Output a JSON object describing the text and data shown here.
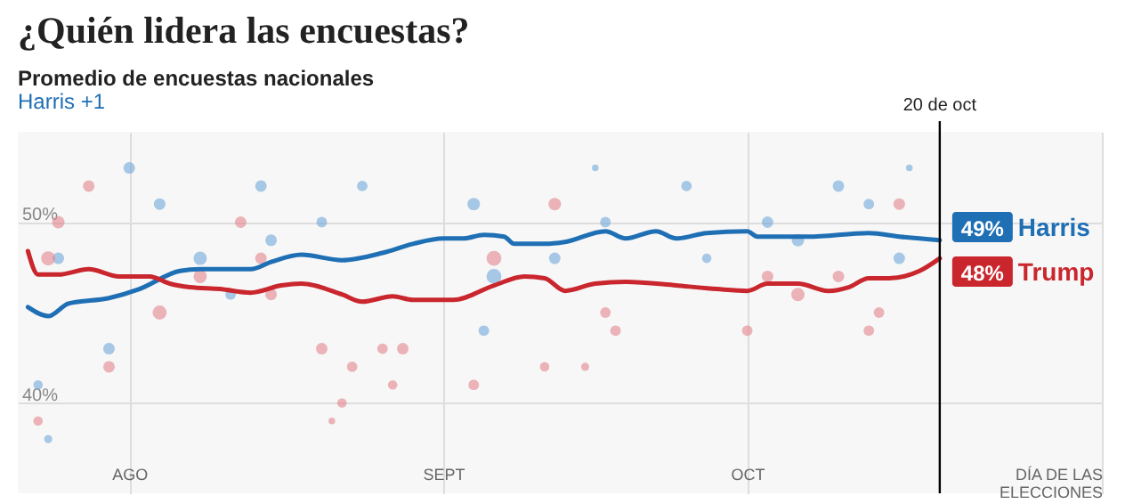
{
  "chart_data": {
    "type": "line",
    "title": "¿Quién lidera las encuestas?",
    "subtitle": "Promedio de encuestas nacionales",
    "annotations": [
      "Harris +1"
    ],
    "xlim": [
      "--07-21",
      "--11-05"
    ],
    "xticks": [
      {
        "value": "--08-01",
        "label": "AGO"
      },
      {
        "value": "--09-01",
        "label": "SEPT"
      },
      {
        "value": "--10-01",
        "label": "OCT"
      },
      {
        "value": "--11-05",
        "label": "DÍA DE LAS\nELECCIONES"
      }
    ],
    "ylim": [
      35,
      55
    ],
    "yticks": [
      {
        "value": 40,
        "label": "40%"
      },
      {
        "value": 50,
        "label": "50%"
      }
    ],
    "grid": true,
    "legend": "right",
    "ref_lines": [
      {
        "axis": "x",
        "value": "--10-20",
        "label": "20 de oct",
        "color": "#000000"
      }
    ],
    "series": [
      {
        "type": "bubble",
        "color": "#6fa7d8",
        "x": [
          "--08-01",
          "--08-14",
          "--08-04",
          "--09-04",
          "--08-08",
          "--09-06",
          "--08-15",
          "--07-30",
          "--07-25",
          "--07-24",
          "--07-23",
          "--08-20",
          "--09-05",
          "--08-11",
          "--08-24",
          "--10-10",
          "--09-25",
          "--10-03",
          "--10-06",
          "--10-16",
          "--09-12",
          "--09-17",
          "--10-13",
          "--09-27",
          "--10-17",
          "--09-16"
        ],
        "values": [
          53,
          52,
          51,
          51,
          48,
          47,
          49,
          43,
          48,
          38,
          41,
          50,
          44,
          46,
          52,
          52,
          52,
          50,
          49,
          48,
          48,
          50,
          51,
          48,
          53,
          53
        ],
        "sizes": [
          0.6,
          0.6,
          0.6,
          0.7,
          0.8,
          1,
          0.6,
          0.6,
          0.6,
          0.3,
          0.4,
          0.5,
          0.5,
          0.5,
          0.5,
          0.6,
          0.5,
          0.6,
          0.7,
          0.6,
          0.6,
          0.5,
          0.5,
          0.4,
          0.2,
          0.2
        ]
      },
      {
        "type": "bubble",
        "color": "#e3848c",
        "x": [
          "--07-28",
          "--07-25",
          "--07-24",
          "--08-04",
          "--08-12",
          "--08-14",
          "--08-15",
          "--08-20",
          "--08-22",
          "--08-21",
          "--07-23",
          "--07-30",
          "--08-28",
          "--08-27",
          "--09-04",
          "--09-06",
          "--09-12",
          "--08-08",
          "--08-23",
          "--08-26",
          "--10-16",
          "--09-17",
          "--09-18",
          "--09-11",
          "--09-15",
          "--10-06",
          "--10-03",
          "--10-10",
          "--10-01",
          "--10-13",
          "--10-14"
        ],
        "values": [
          52,
          50,
          48,
          45,
          50,
          48,
          46,
          43,
          40,
          39,
          39,
          42,
          43,
          41,
          41,
          48,
          51,
          47,
          42,
          43,
          51,
          45,
          44,
          42,
          42,
          46,
          47,
          47,
          44,
          44,
          45
        ],
        "sizes": [
          0.6,
          0.7,
          0.9,
          0.9,
          0.6,
          0.6,
          0.6,
          0.6,
          0.4,
          0.2,
          0.4,
          0.6,
          0.6,
          0.4,
          0.5,
          1,
          0.7,
          0.8,
          0.5,
          0.5,
          0.6,
          0.5,
          0.5,
          0.4,
          0.3,
          0.8,
          0.6,
          0.6,
          0.5,
          0.5,
          0.5
        ]
      },
      {
        "type": "line",
        "name": "Harris",
        "color": "#1f6fb5",
        "x": [
          "--07-22",
          "--07-24",
          "--07-26",
          "--07-30",
          "--08-02",
          "--08-06",
          "--08-08",
          "--08-13",
          "--08-15",
          "--08-18",
          "--08-22",
          "--08-26",
          "--08-29",
          "--09-01",
          "--09-03",
          "--09-05",
          "--09-07",
          "--09-08",
          "--09-11",
          "--09-13",
          "--09-17",
          "--09-19",
          "--09-22",
          "--09-24",
          "--09-27",
          "--10-01",
          "--10-02",
          "--10-07",
          "--10-13",
          "--10-16",
          "--10-20"
        ],
        "values": [
          45.3,
          44.8,
          45.5,
          45.8,
          46.3,
          47.3,
          47.4,
          47.4,
          47.8,
          48.2,
          47.9,
          48.3,
          48.8,
          49.1,
          49.1,
          49.3,
          49.2,
          48.8,
          48.8,
          48.9,
          49.5,
          49.1,
          49.5,
          49.1,
          49.4,
          49.5,
          49.2,
          49.2,
          49.4,
          49.2,
          49
        ],
        "value_labels": [
          null,
          null,
          null,
          null,
          null,
          null,
          null,
          null,
          null,
          null,
          null,
          null,
          null,
          null,
          null,
          null,
          null,
          null,
          null,
          null,
          null,
          null,
          null,
          null,
          null,
          null,
          null,
          null,
          null,
          null,
          "49%"
        ]
      },
      {
        "type": "line",
        "name": "Trump",
        "color": "#c9262d",
        "x": [
          "--07-22",
          "--07-23",
          "--07-25",
          "--07-28",
          "--07-31",
          "--08-03",
          "--08-05",
          "--08-07",
          "--08-10",
          "--08-13",
          "--08-16",
          "--08-18",
          "--08-22",
          "--08-24",
          "--08-27",
          "--08-29",
          "--09-02",
          "--09-06",
          "--09-09",
          "--09-11",
          "--09-13",
          "--09-16",
          "--09-19",
          "--09-24",
          "--09-28",
          "--10-01",
          "--10-03",
          "--10-06",
          "--10-09",
          "--10-11",
          "--10-13",
          "--10-15",
          "--10-18",
          "--10-20"
        ],
        "values": [
          48.4,
          47.1,
          47.1,
          47.4,
          47,
          47,
          46.6,
          46.4,
          46.3,
          46.1,
          46.5,
          46.6,
          46,
          45.6,
          45.9,
          45.7,
          45.7,
          46.5,
          47,
          46.9,
          46.2,
          46.6,
          46.7,
          46.5,
          46.3,
          46.2,
          46.6,
          46.6,
          46.2,
          46.4,
          46.9,
          46.9,
          47.3,
          48
        ],
        "value_labels": [
          null,
          null,
          null,
          null,
          null,
          null,
          null,
          null,
          null,
          null,
          null,
          null,
          null,
          null,
          null,
          null,
          null,
          null,
          null,
          null,
          null,
          null,
          null,
          null,
          null,
          null,
          null,
          null,
          null,
          null,
          null,
          null,
          null,
          "48%"
        ]
      }
    ]
  }
}
